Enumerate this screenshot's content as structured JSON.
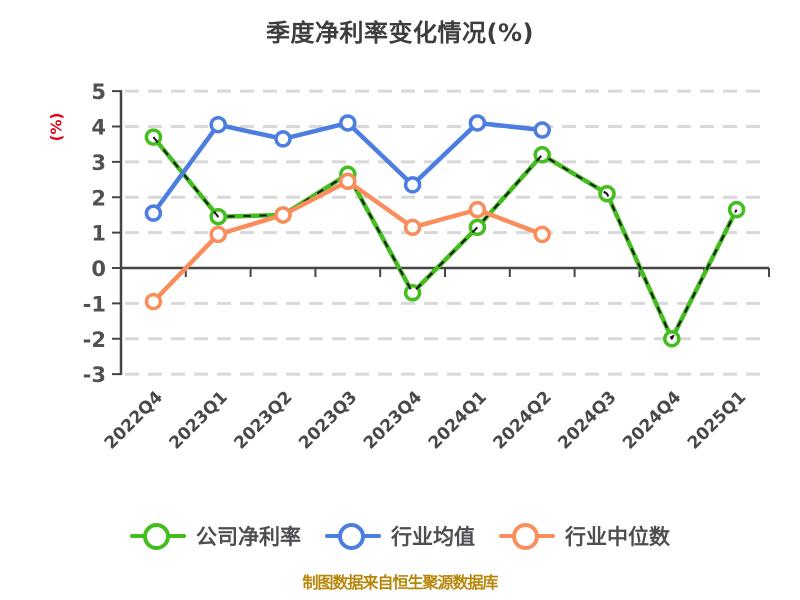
{
  "chart_data": {
    "type": "line",
    "title": "季度净利率变化情况(%)",
    "ylabel": "(%)",
    "source_note": "制图数据来自恒生聚源数据库",
    "categories": [
      "2022Q4",
      "2023Q1",
      "2023Q2",
      "2023Q3",
      "2023Q4",
      "2024Q1",
      "2024Q2",
      "2024Q3",
      "2024Q4",
      "2025Q1"
    ],
    "ylim": [
      -3,
      5
    ],
    "yticks": [
      5,
      4,
      3,
      2,
      1,
      0,
      -1,
      -2,
      -3
    ],
    "grid": "horizontal dashed lines, solid zero axis",
    "legend_position": "bottom",
    "x_labels_rotation_deg": -45,
    "series": [
      {
        "name": "公司净利率",
        "color": "#44bd1e",
        "marker": "circle-white-fill",
        "line_style": "solid with black dashed overlay",
        "values": [
          3.7,
          1.45,
          1.5,
          2.65,
          -0.7,
          1.15,
          3.2,
          2.1,
          -2.0,
          1.65
        ]
      },
      {
        "name": "行业均值",
        "color": "#4c7ee0",
        "marker": "circle-white-fill",
        "line_style": "solid",
        "values": [
          1.55,
          4.05,
          3.65,
          4.1,
          2.35,
          4.1,
          3.9,
          null,
          null,
          null
        ]
      },
      {
        "name": "行业中位数",
        "color": "#f98e5c",
        "marker": "circle-white-fill",
        "line_style": "solid",
        "values": [
          -0.95,
          0.95,
          1.5,
          2.45,
          1.15,
          1.65,
          0.95,
          null,
          null,
          null
        ]
      }
    ],
    "colors": {
      "title": "#3d3d3d",
      "ylabel": "#e60012",
      "axis": "#454549",
      "tick_labels": "#515155",
      "x_labels": "#48484c",
      "gridline": "#d8d8d8",
      "legend_text": "#4f4f53",
      "source_note": "#b8860b",
      "overlay_dash": "#141414",
      "background": "#ffffff"
    }
  }
}
